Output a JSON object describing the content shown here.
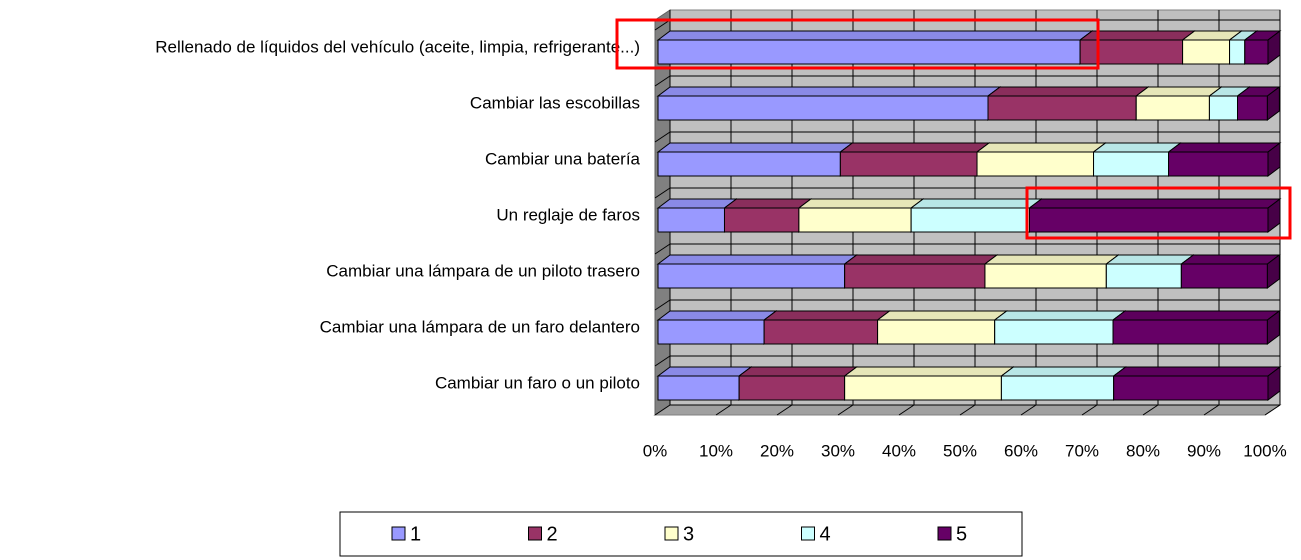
{
  "chart_data": {
    "type": "bar",
    "orientation": "horizontal",
    "stacked": "percent",
    "categories": [
      "Rellenado de líquidos del vehículo (aceite, limpia, refrigerante...)",
      "Cambiar las escobillas",
      "Cambiar una batería",
      "Un reglaje de faros",
      "Cambiar una lámpara de un piloto trasero",
      "Cambiar una lámpara de un faro delantero",
      "Cambiar un faro o un piloto"
    ],
    "series": [
      {
        "name": "1",
        "color": "#9999ff",
        "values": [
          69.2,
          54.1,
          29.9,
          10.9,
          30.6,
          17.4,
          13.3
        ]
      },
      {
        "name": "2",
        "color": "#993366",
        "values": [
          16.8,
          24.3,
          22.4,
          12.2,
          23.0,
          18.6,
          17.3
        ]
      },
      {
        "name": "3",
        "color": "#ffffcc",
        "values": [
          7.7,
          12.0,
          19.1,
          18.4,
          19.9,
          19.2,
          25.7
        ]
      },
      {
        "name": "4",
        "color": "#ccffff",
        "values": [
          2.5,
          4.6,
          12.3,
          19.4,
          12.3,
          19.4,
          18.4
        ]
      },
      {
        "name": "5",
        "color": "#660066",
        "values": [
          3.8,
          4.9,
          16.3,
          39.1,
          14.1,
          25.3,
          25.3
        ]
      }
    ],
    "xlim": [
      0,
      100
    ],
    "xticks": [
      {
        "value": 0,
        "label": "0%"
      },
      {
        "value": 10,
        "label": "10%"
      },
      {
        "value": 20,
        "label": "20%"
      },
      {
        "value": 30,
        "label": "30%"
      },
      {
        "value": 40,
        "label": "40%"
      },
      {
        "value": 50,
        "label": "50%"
      },
      {
        "value": 60,
        "label": "60%"
      },
      {
        "value": 70,
        "label": "70%"
      },
      {
        "value": 80,
        "label": "80%"
      },
      {
        "value": 90,
        "label": "90%"
      },
      {
        "value": 100,
        "label": "100%"
      }
    ],
    "grid": true,
    "legend": "bottom"
  }
}
